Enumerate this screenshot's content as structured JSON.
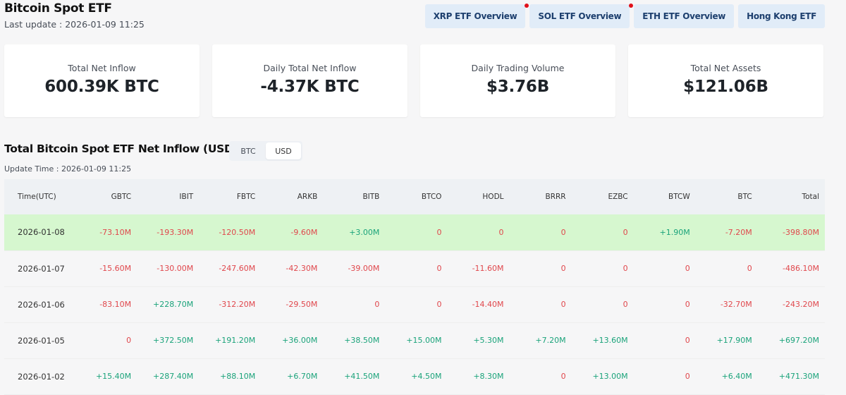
{
  "header": {
    "title": "Bitcoin Spot ETF",
    "last_update": "Last update : 2026-01-09 11:25"
  },
  "nav_buttons": [
    {
      "label": "XRP ETF Overview",
      "badge": true
    },
    {
      "label": "SOL ETF Overview",
      "badge": true
    },
    {
      "label": "ETH ETF Overview",
      "badge": false
    },
    {
      "label": "Hong Kong ETF",
      "badge": false
    }
  ],
  "stats": [
    {
      "label": "Total Net Inflow",
      "value": "600.39K BTC"
    },
    {
      "label": "Daily Total Net Inflow",
      "value": "-4.37K BTC"
    },
    {
      "label": "Daily Trading Volume",
      "value": "$3.76B"
    },
    {
      "label": "Total Net Assets",
      "value": "$121.06B"
    }
  ],
  "section": {
    "title": "Total Bitcoin Spot ETF Net Inflow (USD)",
    "update_time": "Update Time : 2026-01-09 11:25",
    "toggle": {
      "options": [
        "BTC",
        "USD"
      ],
      "selected": "USD"
    }
  },
  "colors": {
    "positive": "#1aa37a",
    "negative": "#e0474c",
    "highlight_row": "#d6f7cf",
    "nav_button_bg": "#e1ecf8",
    "nav_button_text": "#1d3f6e",
    "badge": "#e0101a"
  },
  "table": {
    "columns": [
      "Time(UTC)",
      "GBTC",
      "IBIT",
      "FBTC",
      "ARKB",
      "BITB",
      "BTCO",
      "HODL",
      "BRRR",
      "EZBC",
      "BTCW",
      "BTC",
      "Total"
    ],
    "rows": [
      {
        "highlight": true,
        "cells": [
          "2026-01-08",
          "-73.10M",
          "-193.30M",
          "-120.50M",
          "-9.60M",
          "+3.00M",
          "0",
          "0",
          "0",
          "0",
          "+1.90M",
          "-7.20M",
          "-398.80M"
        ]
      },
      {
        "highlight": false,
        "cells": [
          "2026-01-07",
          "-15.60M",
          "-130.00M",
          "-247.60M",
          "-42.30M",
          "-39.00M",
          "0",
          "-11.60M",
          "0",
          "0",
          "0",
          "0",
          "-486.10M"
        ]
      },
      {
        "highlight": false,
        "cells": [
          "2026-01-06",
          "-83.10M",
          "+228.70M",
          "-312.20M",
          "-29.50M",
          "0",
          "0",
          "-14.40M",
          "0",
          "0",
          "0",
          "-32.70M",
          "-243.20M"
        ]
      },
      {
        "highlight": false,
        "cells": [
          "2026-01-05",
          "0",
          "+372.50M",
          "+191.20M",
          "+36.00M",
          "+38.50M",
          "+15.00M",
          "+5.30M",
          "+7.20M",
          "+13.60M",
          "0",
          "+17.90M",
          "+697.20M"
        ]
      },
      {
        "highlight": false,
        "cells": [
          "2026-01-02",
          "+15.40M",
          "+287.40M",
          "+88.10M",
          "+6.70M",
          "+41.50M",
          "+4.50M",
          "+8.30M",
          "0",
          "+13.00M",
          "0",
          "+6.40M",
          "+471.30M"
        ]
      }
    ]
  }
}
